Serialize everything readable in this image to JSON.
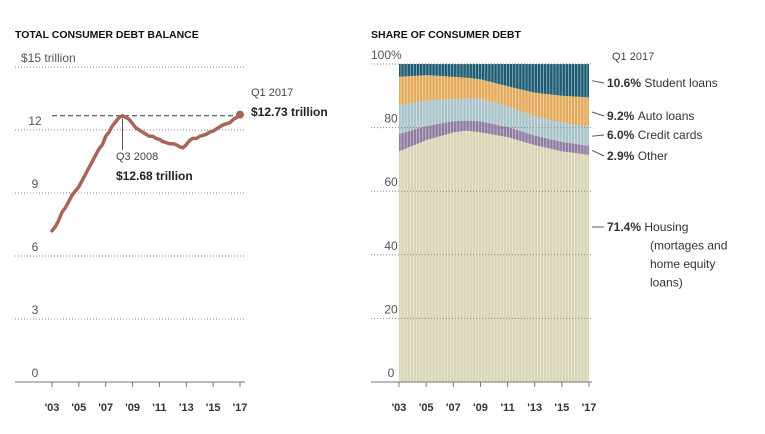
{
  "chart_data": [
    {
      "type": "line",
      "title": "TOTAL CONSUMER DEBT BALANCE",
      "y_unit_label": "$15 trillion",
      "ylim": [
        0,
        15
      ],
      "yticks": [
        0,
        3,
        6,
        9,
        12,
        15
      ],
      "ytick_labels": [
        "0",
        "3",
        "6",
        "9",
        "12",
        "$15 trillion"
      ],
      "xtick_labels": [
        "'03",
        "'05",
        "'07",
        "'09",
        "'11",
        "'13",
        "'15",
        "'17"
      ],
      "grid": true,
      "color": "#a86556",
      "x": [
        2003.0,
        2003.25,
        2003.5,
        2003.75,
        2004.0,
        2004.25,
        2004.5,
        2004.75,
        2005.0,
        2005.25,
        2005.5,
        2005.75,
        2006.0,
        2006.25,
        2006.5,
        2006.75,
        2007.0,
        2007.25,
        2007.5,
        2007.75,
        2008.0,
        2008.25,
        2008.5,
        2008.75,
        2009.0,
        2009.25,
        2009.5,
        2009.75,
        2010.0,
        2010.25,
        2010.5,
        2010.75,
        2011.0,
        2011.25,
        2011.5,
        2011.75,
        2012.0,
        2012.25,
        2012.5,
        2012.75,
        2013.0,
        2013.25,
        2013.5,
        2013.75,
        2014.0,
        2014.25,
        2014.5,
        2014.75,
        2015.0,
        2015.25,
        2015.5,
        2015.75,
        2016.0,
        2016.25,
        2016.5,
        2016.75,
        2017.0
      ],
      "y": [
        7.2,
        7.4,
        7.7,
        8.1,
        8.3,
        8.6,
        8.9,
        9.1,
        9.3,
        9.6,
        9.9,
        10.2,
        10.5,
        10.8,
        11.1,
        11.3,
        11.7,
        11.9,
        12.2,
        12.4,
        12.6,
        12.68,
        12.6,
        12.5,
        12.3,
        12.1,
        12.0,
        11.9,
        11.8,
        11.7,
        11.7,
        11.6,
        11.55,
        11.45,
        11.4,
        11.35,
        11.35,
        11.3,
        11.2,
        11.15,
        11.3,
        11.5,
        11.6,
        11.6,
        11.7,
        11.75,
        11.8,
        11.9,
        11.95,
        12.05,
        12.15,
        12.25,
        12.3,
        12.35,
        12.5,
        12.6,
        12.73
      ],
      "annotations": {
        "end_period": "Q1 2017",
        "end_value": "$12.73 trillion",
        "peak_period": "Q3 2008",
        "peak_value": "$12.68 trillion"
      }
    },
    {
      "type": "area",
      "stacked": true,
      "percent": true,
      "title": "SHARE OF CONSUMER DEBT",
      "ylim": [
        0,
        100
      ],
      "yticks": [
        0,
        20,
        40,
        60,
        80,
        100
      ],
      "ytick_labels": [
        "0",
        "20",
        "40",
        "60",
        "80",
        "100%"
      ],
      "xtick_labels": [
        "'03",
        "'05",
        "'07",
        "'09",
        "'11",
        "'13",
        "'15",
        "'17"
      ],
      "grid": true,
      "x": [
        2003,
        2005,
        2007,
        2008,
        2009,
        2011,
        2013,
        2015,
        2017
      ],
      "series": [
        {
          "name": "Housing (mortages and home equity loans)",
          "color": "#d8d4b4",
          "values": [
            72.5,
            76.0,
            78.5,
            79.0,
            78.5,
            77.0,
            74.5,
            72.5,
            71.4
          ]
        },
        {
          "name": "Other",
          "color": "#8f7aa0",
          "values": [
            5.5,
            4.5,
            3.5,
            3.2,
            3.5,
            3.2,
            3.0,
            3.0,
            2.9
          ]
        },
        {
          "name": "Credit cards",
          "color": "#a8c3c9",
          "values": [
            9.0,
            8.0,
            7.0,
            7.0,
            7.0,
            6.5,
            6.0,
            6.0,
            6.0
          ]
        },
        {
          "name": "Auto loans",
          "color": "#e2aa5a",
          "values": [
            9.0,
            8.0,
            7.0,
            6.5,
            6.2,
            6.3,
            7.5,
            8.5,
            9.2
          ]
        },
        {
          "name": "Student loans",
          "color": "#1c5c73",
          "values": [
            4.0,
            3.5,
            4.0,
            4.3,
            4.8,
            7.0,
            9.0,
            10.0,
            10.6
          ]
        }
      ],
      "labels": [
        {
          "value": "10.6%",
          "text": "Student loans"
        },
        {
          "value": "9.2%",
          "text": "Auto loans"
        },
        {
          "value": "6.0%",
          "text": "Credit cards"
        },
        {
          "value": "2.9%",
          "text": "Other"
        },
        {
          "value": "71.4%",
          "lines": [
            "Housing",
            "(mortages and",
            "home equity",
            "loans)"
          ]
        }
      ],
      "end_period": "Q1 2017"
    }
  ]
}
